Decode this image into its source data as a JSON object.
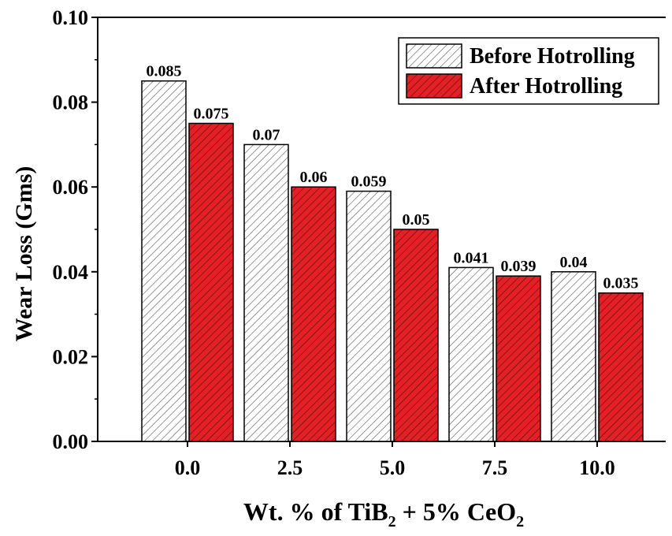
{
  "chart_data": {
    "type": "bar",
    "categories": [
      "0.0",
      "2.5",
      "5.0",
      "7.5",
      "10.0"
    ],
    "series": [
      {
        "name": "Before Hotrolling",
        "values": [
          0.085,
          0.07,
          0.059,
          0.041,
          0.04
        ],
        "labels": [
          "0.085",
          "0.07",
          "0.059",
          "0.041",
          "0.04"
        ],
        "color": "#ffffff",
        "pattern": "diagonal-hatch"
      },
      {
        "name": "After Hotrolling",
        "values": [
          0.075,
          0.06,
          0.05,
          0.039,
          0.035
        ],
        "labels": [
          "0.075",
          "0.06",
          "0.05",
          "0.039",
          "0.035"
        ],
        "color": "#e32026",
        "pattern": "diagonal-hatch"
      }
    ],
    "ylabel": "Wear Loss (Gms)",
    "xlabel": {
      "part1": "Wt. % of TiB",
      "sub1": "2",
      "part2": " + 5% CeO",
      "sub2": "2"
    },
    "ylim": [
      0,
      0.1
    ],
    "yticks": [
      "0.00",
      "0.02",
      "0.04",
      "0.06",
      "0.08",
      "0.10"
    ],
    "legend_position": "top-right",
    "grid": false
  }
}
